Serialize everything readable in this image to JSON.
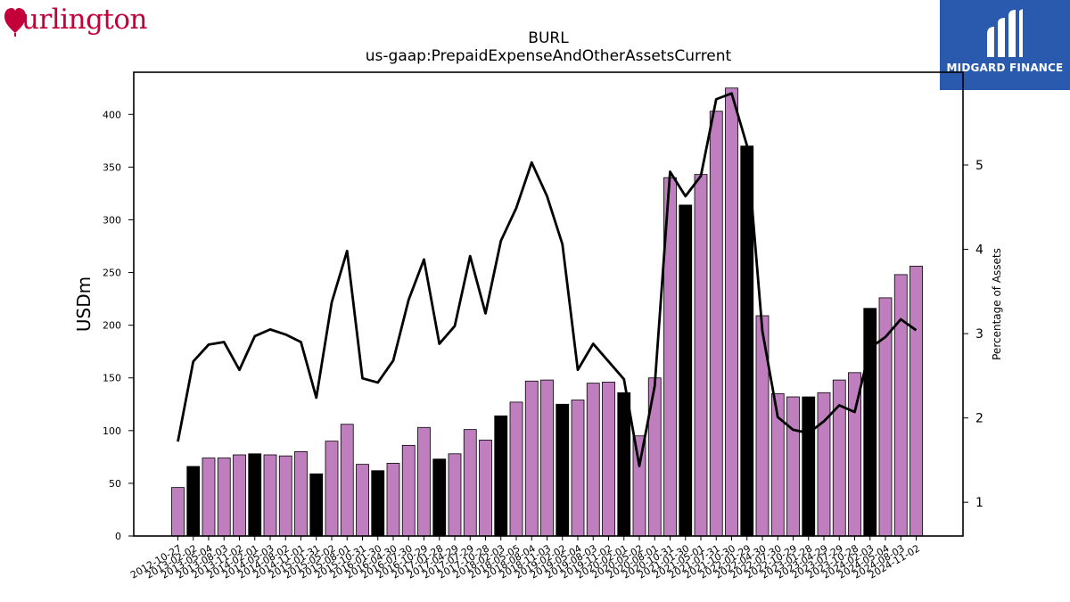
{
  "logo_left": {
    "text": "urlington",
    "icon": "heart-b-logo",
    "color": "#c4003a"
  },
  "logo_right": {
    "text": "MIDGARD FINANCE",
    "icon": "midgard-m-logo",
    "background": "#2a5aad"
  },
  "chart_data": {
    "type": "bar",
    "title": "BURL",
    "subtitle": "us-gaap:PrepaidExpenseAndOtherAssetsCurrent",
    "ylabel": "USDm",
    "y2label": "Percentage of Assets",
    "ylim": [
      0,
      440
    ],
    "y2lim": [
      0.6,
      6.1
    ],
    "yticks": [
      0,
      50,
      100,
      150,
      200,
      250,
      300,
      350,
      400
    ],
    "y2ticks": [
      1,
      2,
      3,
      4,
      5
    ],
    "colors": {
      "bar": "#bf7fbf",
      "bar_highlight": "#000000",
      "line": "#000000"
    },
    "categories": [
      "2012-10-27",
      "2013-02-02",
      "2013-05-04",
      "2013-08-03",
      "2013-11-02",
      "2014-02-01",
      "2014-05-03",
      "2014-08-02",
      "2014-11-01",
      "2015-01-31",
      "2015-05-02",
      "2015-08-01",
      "2015-10-31",
      "2016-01-30",
      "2016-04-30",
      "2016-07-30",
      "2016-10-29",
      "2017-01-28",
      "2017-04-29",
      "2017-07-29",
      "2017-10-28",
      "2018-02-03",
      "2018-05-05",
      "2018-08-04",
      "2018-11-03",
      "2019-02-02",
      "2019-05-04",
      "2019-08-03",
      "2019-11-02",
      "2020-02-01",
      "2020-05-02",
      "2020-08-01",
      "2020-10-31",
      "2021-01-30",
      "2021-05-01",
      "2021-07-31",
      "2021-10-30",
      "2022-01-29",
      "2022-04-30",
      "2022-07-30",
      "2022-10-29",
      "2023-01-28",
      "2023-04-29",
      "2023-07-29",
      "2023-10-28",
      "2024-02-03",
      "2024-05-04",
      "2024-08-03",
      "2024-11-02"
    ],
    "series": [
      {
        "type": "bar",
        "values": [
          46,
          66,
          74,
          74,
          77,
          78,
          77,
          76,
          80,
          59,
          90,
          106,
          68,
          62,
          69,
          86,
          103,
          73,
          78,
          101,
          91,
          114,
          127,
          147,
          148,
          125,
          129,
          145,
          146,
          136,
          95,
          150,
          340,
          314,
          343,
          403,
          425,
          370,
          209,
          135,
          132,
          132,
          136,
          148,
          155,
          216,
          226,
          248,
          256
        ]
      },
      {
        "type": "line",
        "axis": "right",
        "values": [
          1.72,
          2.67,
          2.87,
          2.9,
          2.57,
          2.97,
          3.05,
          2.99,
          2.9,
          2.24,
          3.37,
          3.98,
          2.47,
          2.42,
          2.68,
          3.4,
          3.88,
          2.88,
          3.09,
          3.92,
          3.24,
          4.1,
          4.49,
          5.03,
          4.63,
          4.06,
          2.57,
          2.88,
          2.67,
          2.46,
          1.43,
          2.38,
          4.92,
          4.63,
          4.87,
          5.78,
          5.85,
          5.23,
          3.03,
          2.01,
          1.86,
          1.82,
          1.96,
          2.15,
          2.07,
          2.83,
          2.96,
          3.17,
          3.04
        ]
      }
    ],
    "highlight_indices": [
      1,
      5,
      9,
      13,
      17,
      21,
      25,
      29,
      33,
      37,
      41,
      45
    ]
  }
}
